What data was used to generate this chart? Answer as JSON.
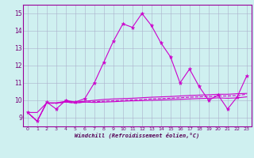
{
  "xlabel": "Windchill (Refroidissement éolien,°C)",
  "bg_color": "#cff0f0",
  "grid_color": "#aab0cc",
  "line_color": "#cc00cc",
  "xlim": [
    -0.5,
    23.5
  ],
  "ylim": [
    8.5,
    15.5
  ],
  "yticks": [
    9,
    10,
    11,
    12,
    13,
    14,
    15
  ],
  "xticks": [
    0,
    1,
    2,
    3,
    4,
    5,
    6,
    7,
    8,
    9,
    10,
    11,
    12,
    13,
    14,
    15,
    16,
    17,
    18,
    19,
    20,
    21,
    22,
    23
  ],
  "series_main": [
    9.3,
    8.8,
    9.9,
    9.5,
    10.0,
    9.9,
    10.1,
    11.0,
    12.2,
    13.4,
    14.4,
    14.2,
    15.0,
    14.3,
    13.3,
    12.5,
    11.0,
    11.8,
    10.8,
    10.0,
    10.3,
    9.5,
    10.2,
    11.4
  ],
  "series_flat1": [
    9.3,
    8.8,
    9.85,
    9.85,
    9.95,
    9.9,
    9.95,
    10.0,
    10.05,
    10.08,
    10.1,
    10.12,
    10.15,
    10.18,
    10.2,
    10.22,
    10.25,
    10.28,
    10.3,
    10.32,
    10.35,
    10.35,
    10.38,
    10.4
  ],
  "series_flat2": [
    9.3,
    8.8,
    9.85,
    9.82,
    9.9,
    9.85,
    9.9,
    9.92,
    9.95,
    9.98,
    10.0,
    10.03,
    10.05,
    10.08,
    10.1,
    10.12,
    10.15,
    10.18,
    10.2,
    10.22,
    10.25,
    10.25,
    10.28,
    10.35
  ],
  "series_flat3": [
    9.3,
    9.3,
    9.85,
    9.85,
    9.9,
    9.85,
    9.9,
    9.88,
    9.9,
    9.92,
    9.95,
    9.97,
    9.98,
    10.0,
    10.02,
    10.04,
    10.06,
    10.08,
    10.1,
    10.12,
    10.14,
    10.12,
    10.14,
    10.2
  ]
}
